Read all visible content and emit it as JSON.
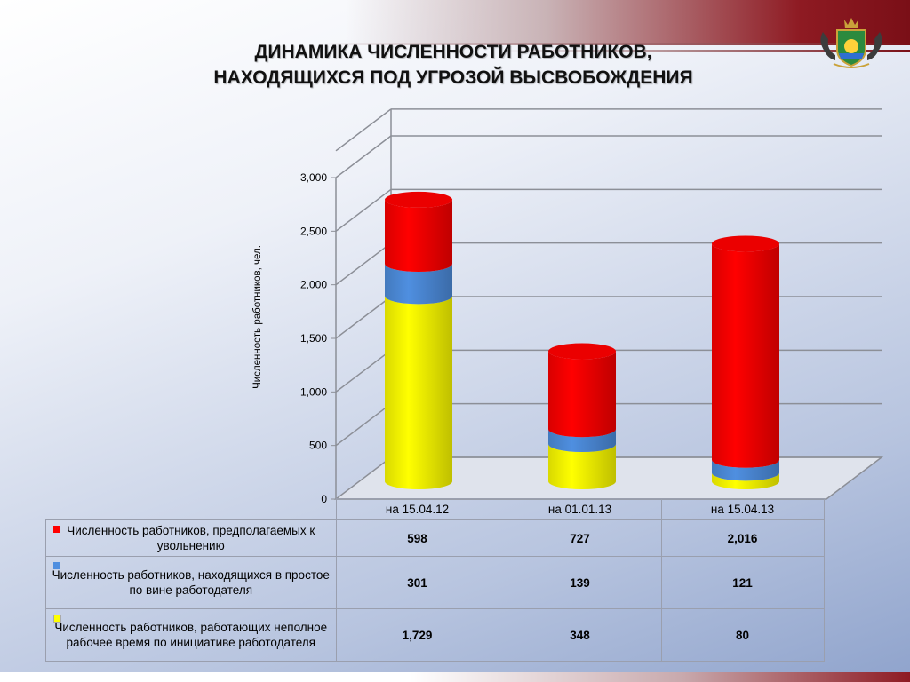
{
  "title_line1": "ДИНАМИКА ЧИСЛЕННОСТИ РАБОТНИКОВ,",
  "title_line2": "НАХОДЯЩИХСЯ ПОД УГРОЗОЙ ВЫСВОБОЖДЕНИЯ",
  "chart_data": {
    "type": "bar",
    "stacked": true,
    "style": "3d-cylinder",
    "categories": [
      "на 15.04.12",
      "на 01.01.13",
      "на 15.04.13"
    ],
    "ylabel": "Численность работников, чел.",
    "ylim": [
      0,
      3000
    ],
    "yticks": [
      "0",
      "500",
      "1,000",
      "1,500",
      "2,000",
      "2,500",
      "3,000"
    ],
    "grid": true,
    "legend": "table-below",
    "series": [
      {
        "name": "Численность работников, работающих неполное рабочее время по инициативе работодателя",
        "color": "#ffff00",
        "values": [
          1729,
          348,
          80
        ],
        "labels": [
          "1,729",
          "348",
          "80"
        ]
      },
      {
        "name": "Численность работников, находящихся в простое по вине работодателя",
        "color": "#4f8fe0",
        "values": [
          301,
          139,
          121
        ],
        "labels": [
          "301",
          "139",
          "121"
        ]
      },
      {
        "name": "Численность работников, предполагаемых к увольнению",
        "color": "#ff0000",
        "values": [
          598,
          727,
          2016
        ],
        "labels": [
          "598",
          "727",
          "2,016"
        ]
      }
    ]
  },
  "table": {
    "rows": [
      {
        "label": "Численность работников, предполагаемых к увольнению",
        "color": "#ff0000",
        "values": [
          "598",
          "727",
          "2,016"
        ]
      },
      {
        "label": "Численность работников, находящихся в простое по вине работодателя",
        "color": "#4f8fe0",
        "values": [
          "301",
          "139",
          "121"
        ]
      },
      {
        "label": "Численность работников, работающих неполное рабочее время по инициативе работодателя",
        "color": "#ffff00",
        "values": [
          "1,729",
          "348",
          "80"
        ]
      }
    ]
  }
}
